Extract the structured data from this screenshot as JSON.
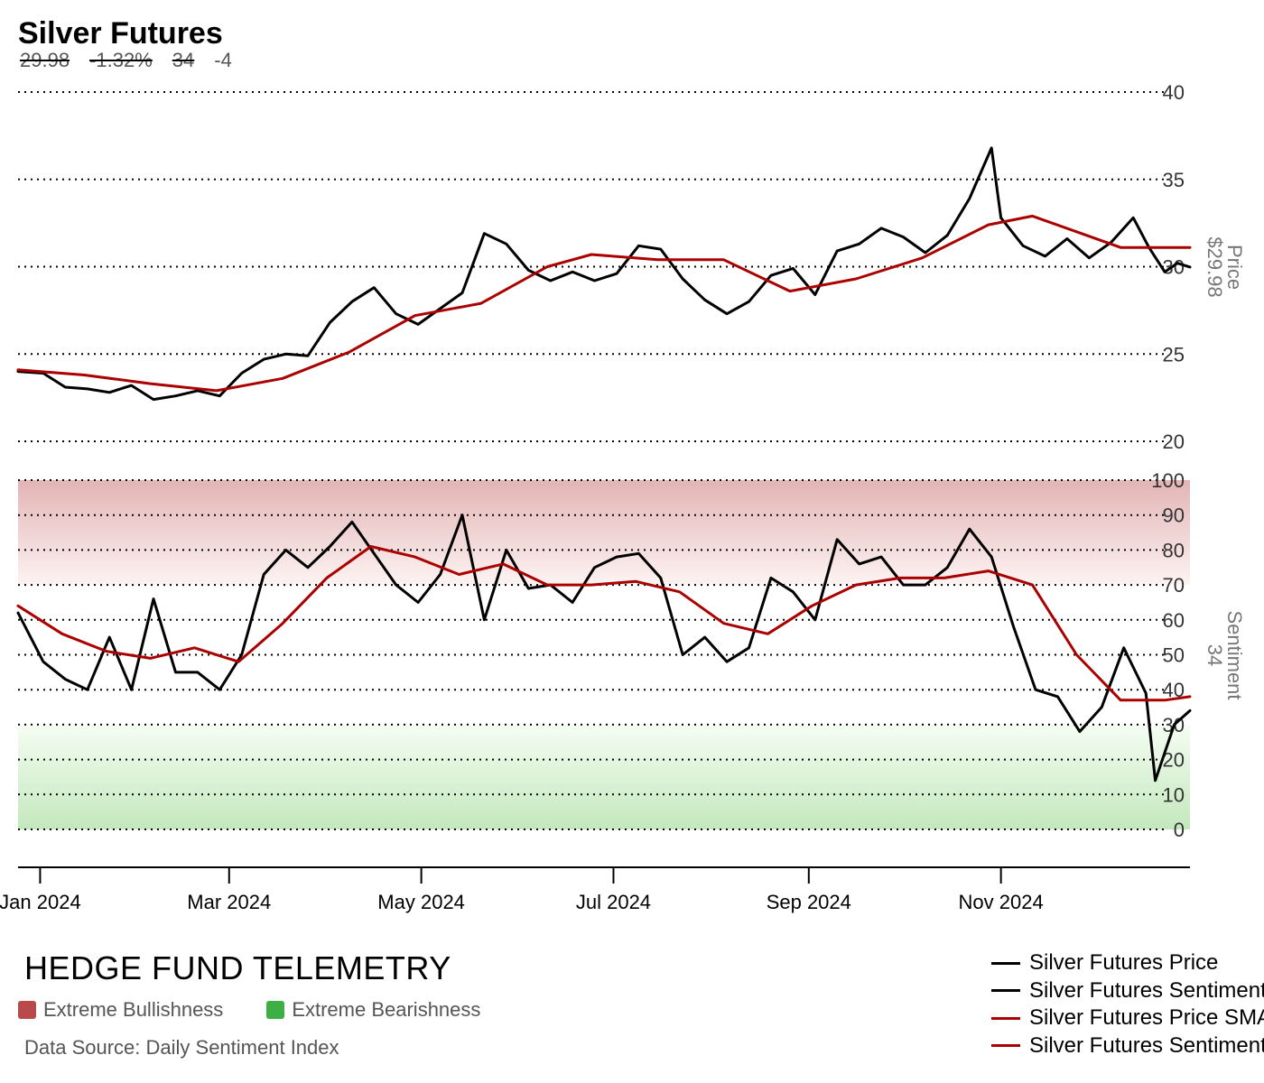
{
  "header": {
    "title": "Silver Futures",
    "price": "29.98",
    "change_pct": "-1.32%",
    "sentiment": "34",
    "sentiment_change": "-4"
  },
  "footer": {
    "brand": "HEDGE FUND TELEMETRY",
    "bull_zone_label": "Extreme Bullishness",
    "bear_zone_label": "Extreme Bearishness",
    "source": "Data Source: Daily Sentiment Index"
  },
  "legend": [
    {
      "label": "Silver Futures Price",
      "color": "#000000"
    },
    {
      "label": "Silver Futures Sentiment",
      "color": "#000000"
    },
    {
      "label": "Silver Futures Price SMA",
      "color": "#aa0000"
    },
    {
      "label": "Silver Futures Sentiment SMA",
      "color": "#aa0000"
    }
  ],
  "colors": {
    "price": "#000000",
    "sma": "#aa0000",
    "bull_zone": "#b94a4a",
    "bear_zone": "#3cb043",
    "grid": "#000000",
    "tick_text": "#333333",
    "axis_title": "#777777"
  },
  "chart_data": [
    {
      "type": "line",
      "name": "price-panel",
      "ylabel": "Price",
      "ylabel_value": "$29.98",
      "ylim": [
        20,
        40
      ],
      "yticks": [
        20,
        25,
        30,
        35,
        40
      ],
      "grid": true,
      "x_domain": [
        "2023-12-25",
        "2024-12-31"
      ],
      "series": [
        {
          "name": "Silver Futures Price",
          "points": [
            [
              "2023-12-25",
              24.0
            ],
            [
              "2024-01-02",
              23.9
            ],
            [
              "2024-01-09",
              23.1
            ],
            [
              "2024-01-16",
              23.0
            ],
            [
              "2024-01-23",
              22.8
            ],
            [
              "2024-01-30",
              23.2
            ],
            [
              "2024-02-06",
              22.4
            ],
            [
              "2024-02-13",
              22.6
            ],
            [
              "2024-02-20",
              22.9
            ],
            [
              "2024-02-27",
              22.6
            ],
            [
              "2024-03-05",
              23.9
            ],
            [
              "2024-03-12",
              24.7
            ],
            [
              "2024-03-19",
              25.0
            ],
            [
              "2024-03-26",
              24.9
            ],
            [
              "2024-04-02",
              26.8
            ],
            [
              "2024-04-09",
              28.0
            ],
            [
              "2024-04-16",
              28.8
            ],
            [
              "2024-04-23",
              27.3
            ],
            [
              "2024-04-30",
              26.7
            ],
            [
              "2024-05-07",
              27.6
            ],
            [
              "2024-05-14",
              28.5
            ],
            [
              "2024-05-21",
              31.9
            ],
            [
              "2024-05-28",
              31.3
            ],
            [
              "2024-06-04",
              29.8
            ],
            [
              "2024-06-11",
              29.2
            ],
            [
              "2024-06-18",
              29.7
            ],
            [
              "2024-06-25",
              29.2
            ],
            [
              "2024-07-02",
              29.6
            ],
            [
              "2024-07-09",
              31.2
            ],
            [
              "2024-07-16",
              31.0
            ],
            [
              "2024-07-23",
              29.3
            ],
            [
              "2024-07-30",
              28.1
            ],
            [
              "2024-08-06",
              27.3
            ],
            [
              "2024-08-13",
              28.0
            ],
            [
              "2024-08-20",
              29.5
            ],
            [
              "2024-08-27",
              29.9
            ],
            [
              "2024-09-03",
              28.4
            ],
            [
              "2024-09-10",
              30.9
            ],
            [
              "2024-09-17",
              31.3
            ],
            [
              "2024-09-24",
              32.2
            ],
            [
              "2024-10-01",
              31.7
            ],
            [
              "2024-10-08",
              30.8
            ],
            [
              "2024-10-15",
              31.8
            ],
            [
              "2024-10-22",
              33.9
            ],
            [
              "2024-10-29",
              36.8
            ],
            [
              "2024-11-01",
              32.8
            ],
            [
              "2024-11-08",
              31.2
            ],
            [
              "2024-11-15",
              30.6
            ],
            [
              "2024-11-22",
              31.6
            ],
            [
              "2024-11-29",
              30.5
            ],
            [
              "2024-12-06",
              31.4
            ],
            [
              "2024-12-13",
              32.8
            ],
            [
              "2024-12-18",
              31.1
            ],
            [
              "2024-12-23",
              29.7
            ],
            [
              "2024-12-27",
              30.2
            ],
            [
              "2024-12-31",
              29.98
            ]
          ]
        },
        {
          "name": "Silver Futures Price SMA",
          "points": [
            [
              "2023-12-25",
              24.1
            ],
            [
              "2024-01-15",
              23.8
            ],
            [
              "2024-02-05",
              23.3
            ],
            [
              "2024-02-26",
              22.9
            ],
            [
              "2024-03-18",
              23.6
            ],
            [
              "2024-04-08",
              25.1
            ],
            [
              "2024-04-29",
              27.2
            ],
            [
              "2024-05-20",
              27.9
            ],
            [
              "2024-06-10",
              30.0
            ],
            [
              "2024-06-24",
              30.7
            ],
            [
              "2024-07-15",
              30.4
            ],
            [
              "2024-08-05",
              30.4
            ],
            [
              "2024-08-26",
              28.6
            ],
            [
              "2024-09-16",
              29.3
            ],
            [
              "2024-10-07",
              30.5
            ],
            [
              "2024-10-28",
              32.4
            ],
            [
              "2024-11-11",
              32.9
            ],
            [
              "2024-11-25",
              32.0
            ],
            [
              "2024-12-09",
              31.1
            ],
            [
              "2024-12-31",
              31.1
            ]
          ]
        }
      ]
    },
    {
      "type": "line",
      "name": "sentiment-panel",
      "ylabel": "Sentiment",
      "ylabel_value": "34",
      "ylim": [
        0,
        100
      ],
      "yticks": [
        0,
        10,
        20,
        30,
        40,
        50,
        60,
        70,
        80,
        90,
        100
      ],
      "grid": true,
      "zones": [
        {
          "label": "Extreme Bullishness",
          "range": [
            70,
            100
          ]
        },
        {
          "label": "Extreme Bearishness",
          "range": [
            0,
            30
          ]
        }
      ],
      "x_domain": [
        "2023-12-25",
        "2024-12-31"
      ],
      "series": [
        {
          "name": "Silver Futures Sentiment",
          "points": [
            [
              "2023-12-25",
              62
            ],
            [
              "2024-01-02",
              48
            ],
            [
              "2024-01-09",
              43
            ],
            [
              "2024-01-16",
              40
            ],
            [
              "2024-01-23",
              55
            ],
            [
              "2024-01-30",
              40
            ],
            [
              "2024-02-06",
              66
            ],
            [
              "2024-02-13",
              45
            ],
            [
              "2024-02-20",
              45
            ],
            [
              "2024-02-27",
              40
            ],
            [
              "2024-03-05",
              50
            ],
            [
              "2024-03-12",
              73
            ],
            [
              "2024-03-19",
              80
            ],
            [
              "2024-03-26",
              75
            ],
            [
              "2024-04-02",
              81
            ],
            [
              "2024-04-09",
              88
            ],
            [
              "2024-04-16",
              79
            ],
            [
              "2024-04-23",
              70
            ],
            [
              "2024-04-30",
              65
            ],
            [
              "2024-05-07",
              73
            ],
            [
              "2024-05-14",
              90
            ],
            [
              "2024-05-21",
              60
            ],
            [
              "2024-05-28",
              80
            ],
            [
              "2024-06-04",
              69
            ],
            [
              "2024-06-11",
              70
            ],
            [
              "2024-06-18",
              65
            ],
            [
              "2024-06-25",
              75
            ],
            [
              "2024-07-02",
              78
            ],
            [
              "2024-07-09",
              79
            ],
            [
              "2024-07-16",
              72
            ],
            [
              "2024-07-23",
              50
            ],
            [
              "2024-07-30",
              55
            ],
            [
              "2024-08-06",
              48
            ],
            [
              "2024-08-13",
              52
            ],
            [
              "2024-08-20",
              72
            ],
            [
              "2024-08-27",
              68
            ],
            [
              "2024-09-03",
              60
            ],
            [
              "2024-09-10",
              83
            ],
            [
              "2024-09-17",
              76
            ],
            [
              "2024-09-24",
              78
            ],
            [
              "2024-10-01",
              70
            ],
            [
              "2024-10-08",
              70
            ],
            [
              "2024-10-15",
              75
            ],
            [
              "2024-10-22",
              86
            ],
            [
              "2024-10-29",
              78
            ],
            [
              "2024-11-05",
              58
            ],
            [
              "2024-11-12",
              40
            ],
            [
              "2024-11-19",
              38
            ],
            [
              "2024-11-26",
              28
            ],
            [
              "2024-12-03",
              35
            ],
            [
              "2024-12-10",
              52
            ],
            [
              "2024-12-17",
              39
            ],
            [
              "2024-12-20",
              14
            ],
            [
              "2024-12-26",
              30
            ],
            [
              "2024-12-31",
              34
            ]
          ]
        },
        {
          "name": "Silver Futures Sentiment SMA",
          "points": [
            [
              "2023-12-25",
              64
            ],
            [
              "2024-01-08",
              56
            ],
            [
              "2024-01-22",
              51
            ],
            [
              "2024-02-05",
              49
            ],
            [
              "2024-02-19",
              52
            ],
            [
              "2024-03-04",
              48
            ],
            [
              "2024-03-18",
              59
            ],
            [
              "2024-04-01",
              72
            ],
            [
              "2024-04-15",
              81
            ],
            [
              "2024-04-29",
              78
            ],
            [
              "2024-05-13",
              73
            ],
            [
              "2024-05-27",
              76
            ],
            [
              "2024-06-10",
              70
            ],
            [
              "2024-06-24",
              70
            ],
            [
              "2024-07-08",
              71
            ],
            [
              "2024-07-22",
              68
            ],
            [
              "2024-08-05",
              59
            ],
            [
              "2024-08-19",
              56
            ],
            [
              "2024-09-02",
              64
            ],
            [
              "2024-09-16",
              70
            ],
            [
              "2024-09-30",
              72
            ],
            [
              "2024-10-14",
              72
            ],
            [
              "2024-10-28",
              74
            ],
            [
              "2024-11-11",
              70
            ],
            [
              "2024-11-25",
              50
            ],
            [
              "2024-12-09",
              37
            ],
            [
              "2024-12-23",
              37
            ],
            [
              "2024-12-31",
              38
            ]
          ]
        }
      ]
    },
    {
      "type": "axis",
      "name": "time-axis",
      "x_ticks": [
        {
          "date": "2024-01-01",
          "label": "Jan 2024"
        },
        {
          "date": "2024-03-01",
          "label": "Mar 2024"
        },
        {
          "date": "2024-05-01",
          "label": "May 2024"
        },
        {
          "date": "2024-07-01",
          "label": "Jul 2024"
        },
        {
          "date": "2024-09-01",
          "label": "Sep 2024"
        },
        {
          "date": "2024-11-01",
          "label": "Nov 2024"
        }
      ]
    }
  ]
}
